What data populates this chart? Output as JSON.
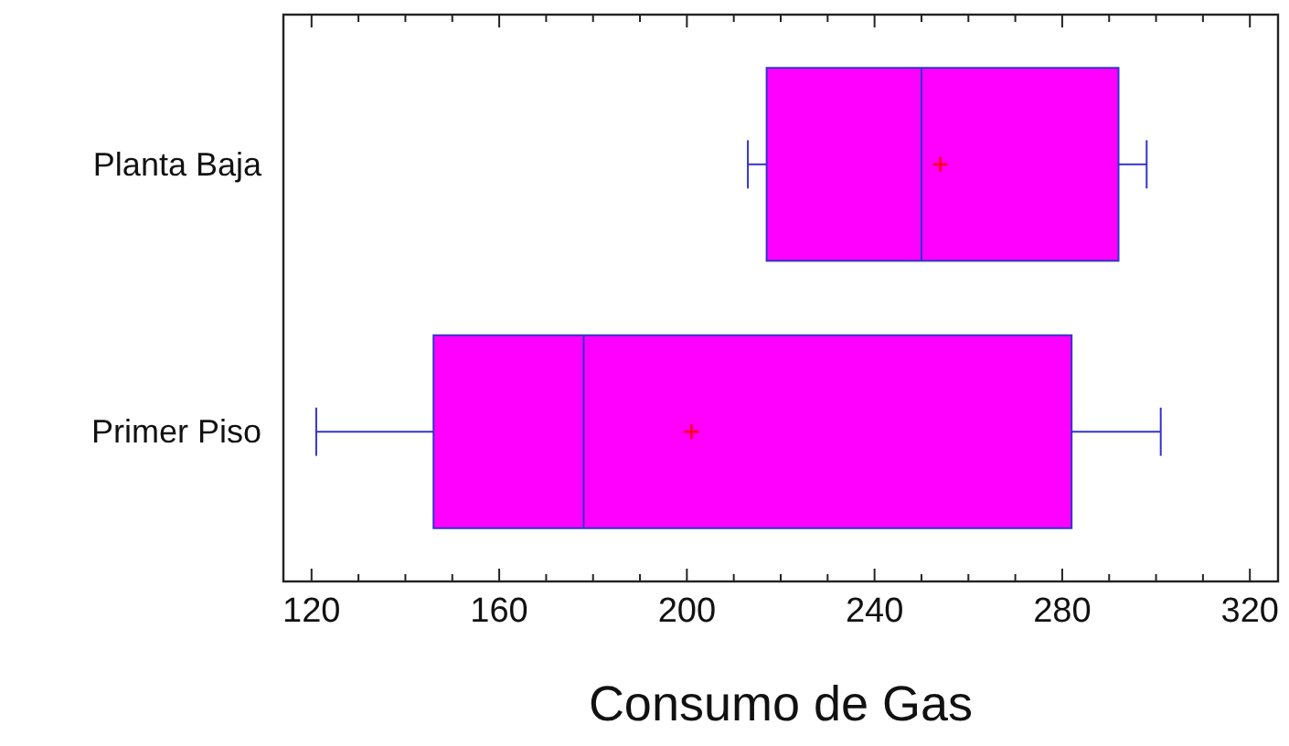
{
  "chart_data": {
    "type": "box",
    "orientation": "horizontal",
    "xlabel": "Consumo de Gas",
    "categories": [
      "Planta Baja",
      "Primer Piso"
    ],
    "color": "#ff00ff",
    "boxes": [
      {
        "low": 213,
        "q1": 217,
        "median": 250,
        "q3": 292,
        "high": 298,
        "mean": 254
      },
      {
        "low": 121,
        "q1": 146,
        "median": 178,
        "q3": 282,
        "high": 301,
        "mean": 201
      }
    ],
    "xlim": [
      114,
      326
    ],
    "xticks": [
      120,
      {
        "value": 130,
        "label": null
      },
      {
        "value": 140,
        "label": null
      },
      {
        "value": 150,
        "label": null
      },
      160,
      {
        "value": 170,
        "label": null
      },
      {
        "value": 180,
        "label": null
      },
      {
        "value": 190,
        "label": null
      },
      200,
      {
        "value": 210,
        "label": null
      },
      {
        "value": 220,
        "label": null
      },
      {
        "value": 230,
        "label": null
      },
      240,
      {
        "value": 250,
        "label": null
      },
      {
        "value": 260,
        "label": null
      },
      {
        "value": 270,
        "label": null
      },
      280,
      {
        "value": 290,
        "label": null
      },
      {
        "value": 300,
        "label": null
      },
      {
        "value": 310,
        "label": null
      },
      320
    ],
    "grid": false
  }
}
